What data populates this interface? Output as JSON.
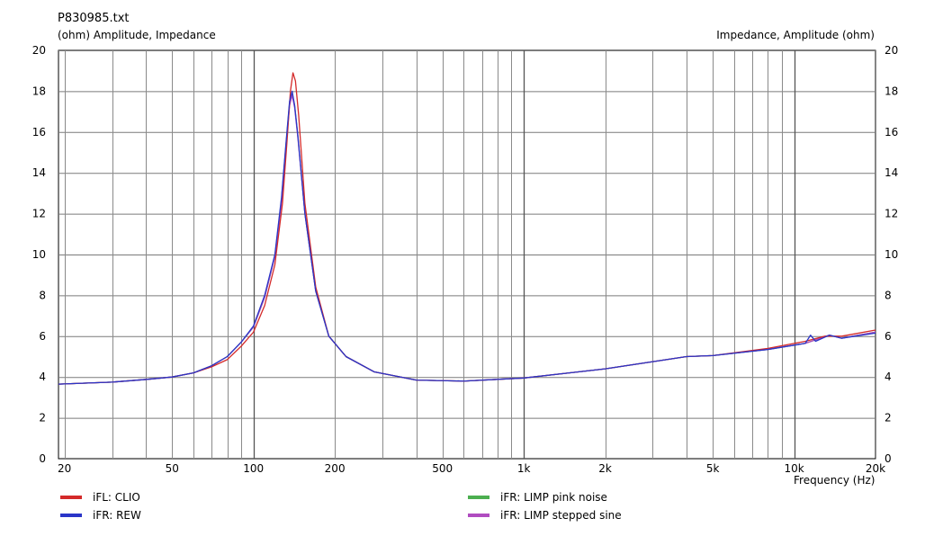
{
  "chart_data": {
    "type": "line",
    "title": "P830985.txt",
    "left_axis_label": "(ohm)  Amplitude, Impedance",
    "right_axis_label": "Impedance, Amplitude  (ohm)",
    "xlabel": "Frequency  (Hz)",
    "xscale": "log",
    "xlim": [
      19,
      20000
    ],
    "ylim": [
      0,
      20
    ],
    "grid": true,
    "legend_placement": "bottom",
    "x_tick_labels": [
      {
        "value": 20,
        "label": "20"
      },
      {
        "value": 50,
        "label": "50"
      },
      {
        "value": 100,
        "label": "100"
      },
      {
        "value": 200,
        "label": "200"
      },
      {
        "value": 500,
        "label": "500"
      },
      {
        "value": 1000,
        "label": "1k"
      },
      {
        "value": 2000,
        "label": "2k"
      },
      {
        "value": 5000,
        "label": "5k"
      },
      {
        "value": 10000,
        "label": "10k"
      },
      {
        "value": 20000,
        "label": "20k"
      }
    ],
    "y_ticks": [
      0,
      2,
      4,
      6,
      8,
      10,
      12,
      14,
      16,
      18,
      20
    ],
    "series": [
      {
        "name": "iFL: CLIO",
        "color": "#d42a2a",
        "x": [
          19,
          30,
          40,
          50,
          60,
          70,
          80,
          90,
          100,
          110,
          120,
          128,
          133,
          137,
          140,
          143,
          147,
          155,
          170,
          190,
          220,
          280,
          400,
          600,
          1000,
          2000,
          4000,
          5000,
          8000,
          11000,
          13000,
          15000,
          20000
        ],
        "y": [
          3.65,
          3.75,
          3.88,
          4.0,
          4.2,
          4.5,
          4.85,
          5.5,
          6.2,
          7.5,
          9.5,
          12.5,
          15.5,
          18.0,
          18.9,
          18.5,
          16.8,
          12.5,
          8.4,
          6.0,
          5.0,
          4.25,
          3.85,
          3.8,
          3.95,
          4.4,
          5.0,
          5.05,
          5.4,
          5.75,
          6.0,
          6.0,
          6.3
        ]
      },
      {
        "name": "iFR: REW",
        "color": "#2a35c8",
        "x": [
          19,
          30,
          40,
          50,
          60,
          70,
          80,
          90,
          100,
          110,
          120,
          127,
          132,
          136,
          139,
          142,
          146,
          155,
          170,
          190,
          220,
          280,
          400,
          600,
          1000,
          2000,
          4000,
          5000,
          8000,
          11000,
          11500,
          12000,
          13500,
          15000,
          20000
        ],
        "y": [
          3.65,
          3.75,
          3.88,
          4.0,
          4.2,
          4.55,
          5.0,
          5.7,
          6.5,
          8.0,
          10.0,
          12.8,
          15.5,
          17.5,
          18.0,
          17.3,
          15.8,
          12.0,
          8.2,
          6.0,
          5.0,
          4.25,
          3.85,
          3.8,
          3.95,
          4.4,
          5.0,
          5.05,
          5.35,
          5.65,
          6.05,
          5.75,
          6.05,
          5.9,
          6.15
        ]
      },
      {
        "name": "iFR: LIMP pink noise",
        "color": "#4caf50",
        "x": [
          19,
          30,
          40,
          50,
          60,
          70,
          80,
          90,
          100,
          110,
          120,
          127,
          132,
          136,
          139,
          142,
          146,
          155,
          170,
          190,
          220,
          280,
          400,
          600,
          1000,
          2000,
          4000,
          5000,
          8000,
          11000,
          13500,
          15000,
          20000
        ],
        "y": [
          3.65,
          3.75,
          3.88,
          4.0,
          4.2,
          4.55,
          5.0,
          5.7,
          6.45,
          7.9,
          9.9,
          12.7,
          15.4,
          17.4,
          17.9,
          17.3,
          15.8,
          12.0,
          8.2,
          6.0,
          5.0,
          4.25,
          3.85,
          3.8,
          3.95,
          4.4,
          5.0,
          5.05,
          5.35,
          5.65,
          6.05,
          5.9,
          6.2
        ]
      },
      {
        "name": "iFR: LIMP stepped sine",
        "color": "#b04cc0",
        "x": [
          19,
          30,
          40,
          50,
          60,
          70,
          80,
          90,
          100,
          110,
          120,
          127,
          132,
          136,
          139,
          142,
          146,
          155,
          170,
          190,
          220,
          280,
          400,
          600,
          1000,
          2000,
          4000,
          5000,
          8000,
          11000,
          13500,
          15000,
          20000
        ],
        "y": [
          3.65,
          3.75,
          3.88,
          4.0,
          4.2,
          4.55,
          5.0,
          5.7,
          6.45,
          7.9,
          9.9,
          12.6,
          15.3,
          17.3,
          17.8,
          17.2,
          15.7,
          12.0,
          8.2,
          6.0,
          5.0,
          4.25,
          3.85,
          3.8,
          3.95,
          4.4,
          5.0,
          5.05,
          5.35,
          5.65,
          6.05,
          5.9,
          6.2
        ]
      }
    ]
  }
}
